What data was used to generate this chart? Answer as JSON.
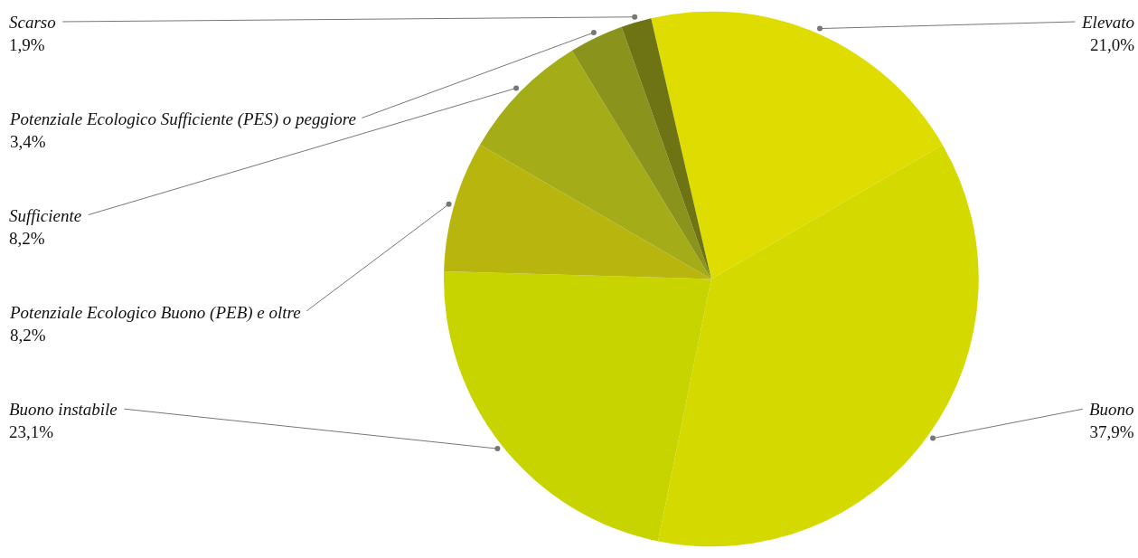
{
  "chart_data": {
    "type": "pie",
    "categories": [
      "Elevato",
      "Buono",
      "Buono instabile",
      "Potenziale Ecologico Buono (PEB) e oltre",
      "Sufficiente",
      "Potenziale Ecologico Sufficiente (PES) o peggiore",
      "Scarso"
    ],
    "values": [
      21.0,
      37.9,
      23.1,
      8.2,
      8.2,
      3.4,
      1.9
    ],
    "value_labels": [
      "21,0%",
      "37,9%",
      "23,1%",
      "8,2%",
      "8,2%",
      "3,4%",
      "1,9%"
    ],
    "colors": [
      "#dedc00",
      "#d4da00",
      "#c8d400",
      "#b8b50e",
      "#a4ad18",
      "#8a931c",
      "#6e7314"
    ],
    "legend": false
  }
}
